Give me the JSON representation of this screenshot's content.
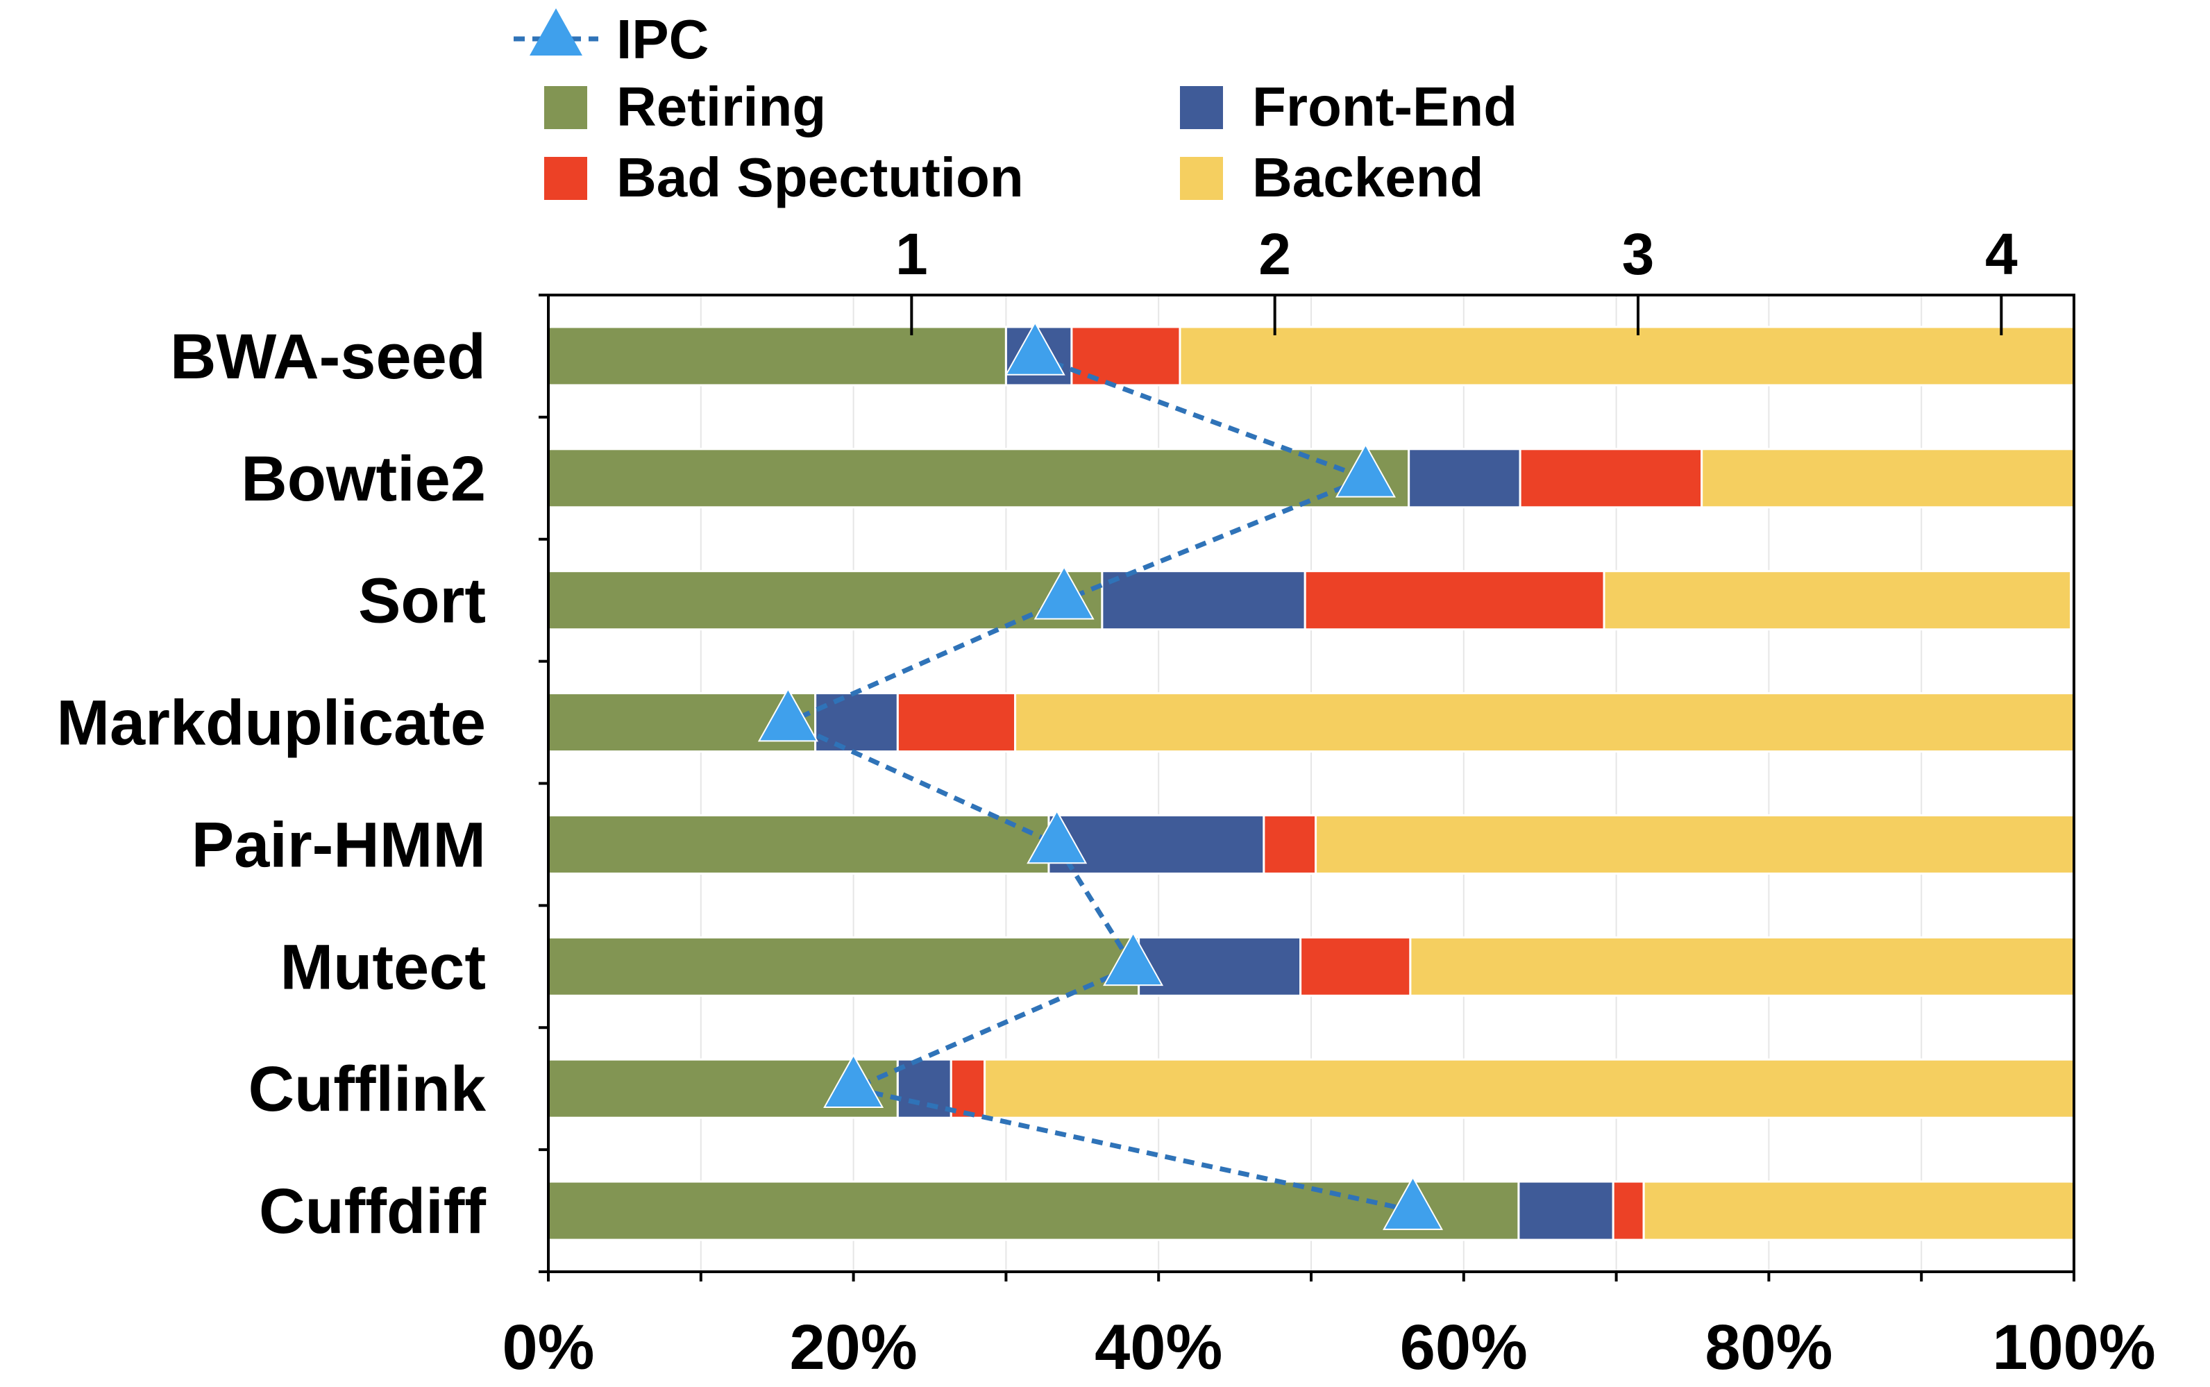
{
  "chart_data": {
    "type": "bar",
    "stacked": true,
    "orientation": "horizontal",
    "title": "",
    "xlabel": "",
    "ylabel": "",
    "xlim": [
      0,
      100
    ],
    "secondary_xlim": [
      0,
      4.2
    ],
    "grid": "vertical",
    "legend_position": "top",
    "categories": [
      "BWA-seed",
      "Bowtie2",
      "Sort",
      "Markduplicate",
      "Pair-HMM",
      "Mutect",
      "Cufflink",
      "Cuffdiff"
    ],
    "x_ticks": [
      "0%",
      "20%",
      "40%",
      "60%",
      "80%",
      "100%"
    ],
    "top_ticks": [
      "1",
      "2",
      "3",
      "4"
    ],
    "series": [
      {
        "name": "Retiring",
        "color": "#829553",
        "values": [
          30,
          56.4,
          36.3,
          17.5,
          32.8,
          38.7,
          22.9,
          63.6
        ]
      },
      {
        "name": "Front-End",
        "color": "#3f5b98",
        "values": [
          4.3,
          7.3,
          13.3,
          5.4,
          14.1,
          10.6,
          3.5,
          6.2
        ]
      },
      {
        "name": "Bad Spectution",
        "color": "#ec4126",
        "values": [
          7.1,
          11.9,
          19.6,
          7.7,
          3.4,
          7.2,
          2.2,
          2.0
        ]
      },
      {
        "name": "Backend",
        "color": "#f5cf60",
        "values": [
          58.6,
          24.4,
          30.6,
          69.4,
          49.7,
          43.5,
          71.4,
          28.2
        ]
      }
    ],
    "ipc_series": {
      "name": "IPC",
      "color": "#3fa0ec",
      "values": [
        1.34,
        2.25,
        1.42,
        0.66,
        1.4,
        1.61,
        0.84,
        2.38
      ]
    }
  }
}
